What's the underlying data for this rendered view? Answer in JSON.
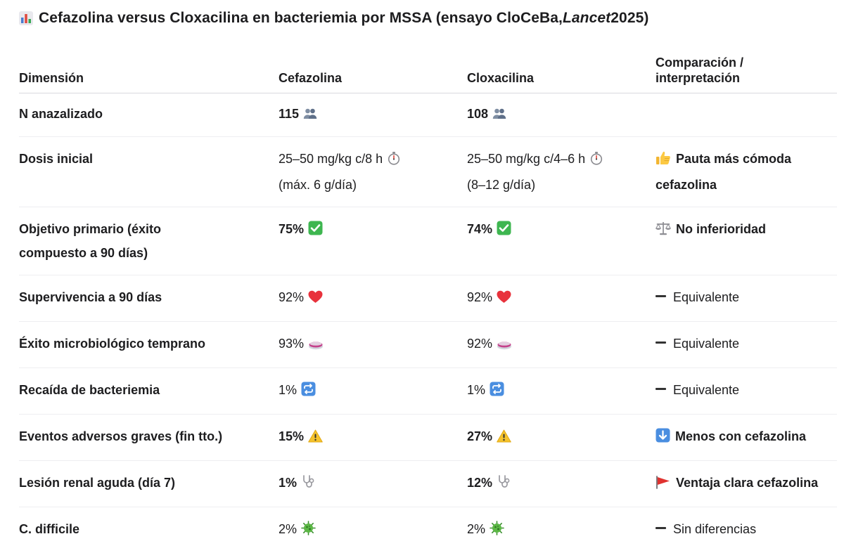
{
  "title": {
    "prefix": "Cefazolina versus Cloxacilina en bacteriemia por MSSA (ensayo CloCeBa, ",
    "journal": "Lancet",
    "suffix": " 2025)",
    "icon": "bar-chart-icon"
  },
  "columns": [
    "Dimensión",
    "Cefazolina",
    "Cloxacilina",
    "Comparación / interpretación"
  ],
  "rows": [
    {
      "dimension": "N anazalizado",
      "cefazolina": {
        "text": "115",
        "bold": true,
        "icon": "people-icon"
      },
      "cloxacilina": {
        "text": "108",
        "bold": true,
        "icon": "people-icon"
      },
      "comparison": {
        "text": "",
        "bold": false,
        "icon": ""
      }
    },
    {
      "dimension": "Dosis inicial",
      "cefazolina": {
        "text": "25–50 mg/kg c/8 h",
        "line2": "(máx. 6 g/día)",
        "bold": false,
        "icon": "stopwatch-icon"
      },
      "cloxacilina": {
        "text": "25–50 mg/kg c/4–6 h",
        "line2": "(8–12 g/día)",
        "bold": false,
        "icon": "stopwatch-icon"
      },
      "comparison": {
        "text": "Pauta más cómoda",
        "line2": "cefazolina",
        "bold": true,
        "icon": "thumbs-up-icon"
      }
    },
    {
      "dimension": "Objetivo primario (éxito compuesto a 90 días)",
      "cefazolina": {
        "text": "75%",
        "bold": true,
        "icon": "check-mark-icon"
      },
      "cloxacilina": {
        "text": "74%",
        "bold": true,
        "icon": "check-mark-icon"
      },
      "comparison": {
        "text": "No inferioridad",
        "bold": true,
        "icon": "balance-scale-icon"
      }
    },
    {
      "dimension": "Supervivencia a 90 días",
      "cefazolina": {
        "text": "92%",
        "bold": false,
        "icon": "heart-icon"
      },
      "cloxacilina": {
        "text": "92%",
        "bold": false,
        "icon": "heart-icon"
      },
      "comparison": {
        "text": "Equivalente",
        "bold": false,
        "icon": "dash-icon"
      }
    },
    {
      "dimension": "Éxito microbiológico temprano",
      "cefazolina": {
        "text": "93%",
        "bold": false,
        "icon": "petri-dish-icon"
      },
      "cloxacilina": {
        "text": "92%",
        "bold": false,
        "icon": "petri-dish-icon"
      },
      "comparison": {
        "text": "Equivalente",
        "bold": false,
        "icon": "dash-icon"
      }
    },
    {
      "dimension": "Recaída de bacteriemia",
      "cefazolina": {
        "text": "1%",
        "bold": false,
        "icon": "repeat-icon"
      },
      "cloxacilina": {
        "text": "1%",
        "bold": false,
        "icon": "repeat-icon"
      },
      "comparison": {
        "text": "Equivalente",
        "bold": false,
        "icon": "dash-icon"
      }
    },
    {
      "dimension": "Eventos adversos graves (fin tto.)",
      "cefazolina": {
        "text": "15%",
        "bold": true,
        "icon": "warning-icon"
      },
      "cloxacilina": {
        "text": "27%",
        "bold": true,
        "icon": "warning-icon"
      },
      "comparison": {
        "text": "Menos con cefazolina",
        "bold": true,
        "icon": "down-arrow-icon"
      }
    },
    {
      "dimension": "Lesión renal aguda (día 7)",
      "cefazolina": {
        "text": "1%",
        "bold": true,
        "icon": "stethoscope-icon"
      },
      "cloxacilina": {
        "text": "12%",
        "bold": true,
        "icon": "stethoscope-icon"
      },
      "comparison": {
        "text": "Ventaja clara cefazolina",
        "bold": true,
        "icon": "red-flag-icon"
      }
    },
    {
      "dimension": "C. difficile",
      "cefazolina": {
        "text": "2%",
        "bold": false,
        "icon": "microbe-icon"
      },
      "cloxacilina": {
        "text": "2%",
        "bold": false,
        "icon": "microbe-icon"
      },
      "comparison": {
        "text": "Sin diferencias",
        "bold": false,
        "icon": "dash-icon"
      }
    }
  ]
}
